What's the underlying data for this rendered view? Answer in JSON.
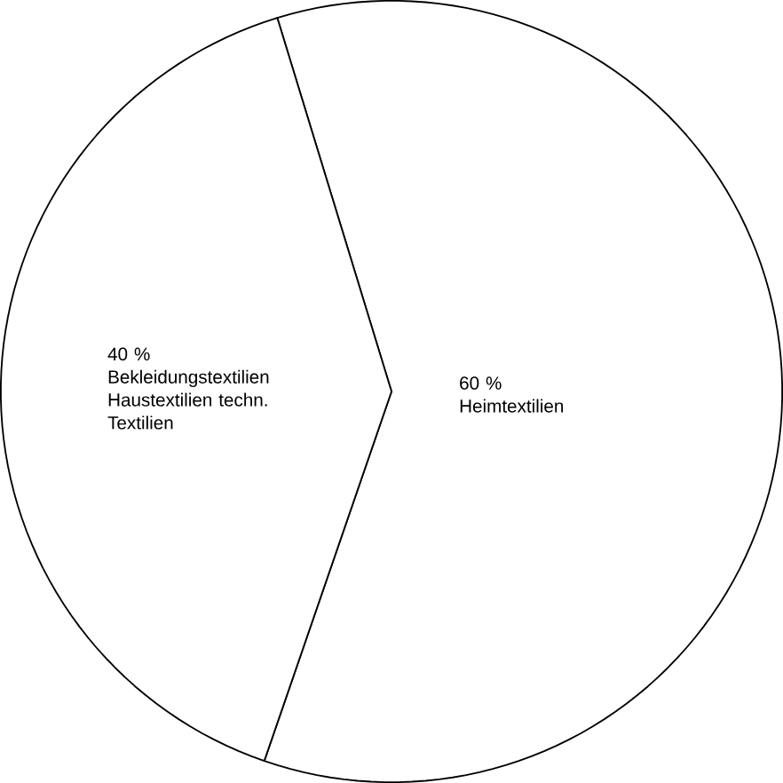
{
  "chart_data": {
    "type": "pie",
    "categories": [
      "Heimtextilien",
      "Bekleidungstextilien Haustextilien techn. Textilien"
    ],
    "values": [
      60,
      40
    ],
    "value_labels": [
      "60 %",
      "40 %"
    ],
    "colors": [
      "#ffffff",
      "#ffffff"
    ]
  }
}
